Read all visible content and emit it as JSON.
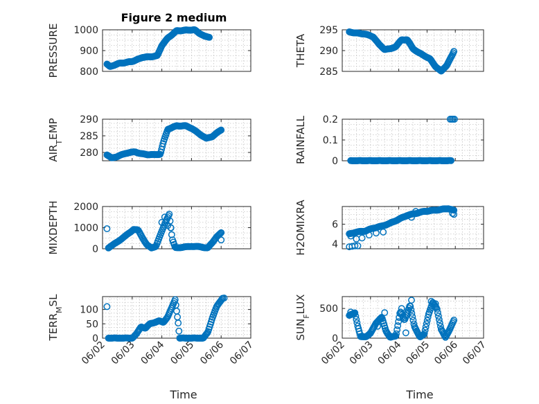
{
  "figure": {
    "title": "Figure 2 medium"
  },
  "colors": {
    "marker": "#0072BD",
    "axis": "#262626",
    "grid": "#c4c4c4"
  },
  "chart_data": [
    {
      "id": "pressure",
      "type": "scatter",
      "col": 0,
      "row": 0,
      "title": "Figure 2 medium",
      "ylabel": {
        "main": "PRESSURE",
        "sub": "",
        "rest": ""
      },
      "xlabel": "",
      "xlim": [
        0,
        5
      ],
      "ylim": [
        800,
        1000
      ],
      "yticks": [
        800,
        900,
        1000
      ],
      "yticklabels": [
        "800",
        "900",
        "1000"
      ],
      "xticks": [
        0,
        1,
        2,
        3,
        4,
        5
      ],
      "xticklabels": [],
      "grid": true,
      "minor_grid": true,
      "curve": [
        [
          0.15,
          835
        ],
        [
          0.25,
          822
        ],
        [
          0.35,
          828
        ],
        [
          0.55,
          838
        ],
        [
          0.8,
          843
        ],
        [
          1.0,
          848
        ],
        [
          1.2,
          858
        ],
        [
          1.35,
          868
        ],
        [
          1.6,
          870
        ],
        [
          1.85,
          875
        ],
        [
          2.0,
          925
        ],
        [
          2.2,
          960
        ],
        [
          2.5,
          995
        ],
        [
          2.8,
          998
        ],
        [
          3.1,
          1000
        ],
        [
          3.25,
          985
        ],
        [
          3.45,
          968
        ],
        [
          3.6,
          965
        ]
      ],
      "n": 160
    },
    {
      "id": "theta",
      "type": "scatter",
      "col": 1,
      "row": 0,
      "ylabel": {
        "main": "THETA",
        "sub": "",
        "rest": ""
      },
      "xlabel": "",
      "xlim": [
        0,
        5
      ],
      "ylim": [
        285,
        295
      ],
      "yticks": [
        285,
        290,
        295
      ],
      "yticklabels": [
        "285",
        "290",
        "295"
      ],
      "xticks": [
        0,
        1,
        2,
        3,
        4,
        5
      ],
      "xticklabels": [],
      "grid": true,
      "minor_grid": true,
      "curve": [
        [
          0.25,
          294.5
        ],
        [
          0.5,
          294.2
        ],
        [
          0.8,
          294.0
        ],
        [
          1.1,
          293.3
        ],
        [
          1.3,
          291.5
        ],
        [
          1.5,
          290.3
        ],
        [
          1.7,
          290.4
        ],
        [
          1.9,
          291.0
        ],
        [
          2.1,
          292.6
        ],
        [
          2.3,
          292.6
        ],
        [
          2.5,
          290.5
        ],
        [
          2.7,
          289.5
        ],
        [
          2.9,
          288.8
        ],
        [
          3.1,
          288.0
        ],
        [
          3.3,
          286.2
        ],
        [
          3.5,
          285.0
        ],
        [
          3.7,
          286.5
        ],
        [
          3.9,
          289.0
        ],
        [
          3.95,
          289.8
        ]
      ],
      "n": 150
    },
    {
      "id": "air_temp",
      "type": "scatter",
      "col": 0,
      "row": 1,
      "ylabel": {
        "main": "AIR",
        "sub": "T",
        "rest": "EMP"
      },
      "xlabel": "",
      "xlim": [
        0,
        5
      ],
      "ylim": [
        277.5,
        290
      ],
      "yticks": [
        280,
        285,
        290
      ],
      "yticklabels": [
        "280",
        "285",
        "290"
      ],
      "xticks": [
        0,
        1,
        2,
        3,
        4,
        5
      ],
      "xticklabels": [],
      "grid": true,
      "minor_grid": true,
      "curve": [
        [
          0.15,
          279.3
        ],
        [
          0.3,
          278.3
        ],
        [
          0.5,
          278.8
        ],
        [
          0.8,
          279.8
        ],
        [
          1.1,
          280.2
        ],
        [
          1.3,
          279.6
        ],
        [
          1.5,
          279.4
        ],
        [
          1.75,
          279.3
        ],
        [
          1.95,
          279.5
        ],
        [
          2.05,
          283.0
        ],
        [
          2.2,
          287.0
        ],
        [
          2.5,
          288.0
        ],
        [
          2.8,
          288.0
        ],
        [
          3.0,
          287.3
        ],
        [
          3.2,
          286.0
        ],
        [
          3.5,
          284.2
        ],
        [
          3.7,
          284.8
        ],
        [
          3.85,
          285.8
        ],
        [
          4.0,
          286.8
        ]
      ],
      "n": 160
    },
    {
      "id": "rainfall",
      "type": "scatter",
      "col": 1,
      "row": 1,
      "ylabel": {
        "main": "RAINFALL",
        "sub": "",
        "rest": ""
      },
      "xlabel": "",
      "xlim": [
        0,
        5
      ],
      "ylim": [
        0,
        0.2
      ],
      "yticks": [
        0,
        0.1,
        0.2
      ],
      "yticklabels": [
        "0",
        "0.1",
        "0.2"
      ],
      "xticks": [
        0,
        1,
        2,
        3,
        4,
        5
      ],
      "xticklabels": [],
      "grid": true,
      "minor_grid": true,
      "curve": [
        [
          0.3,
          0
        ],
        [
          3.85,
          0
        ]
      ],
      "n": 150,
      "extra": [
        [
          3.82,
          0.2
        ],
        [
          3.87,
          0.2
        ],
        [
          3.92,
          0.2
        ],
        [
          3.97,
          0.2
        ]
      ]
    },
    {
      "id": "mixdepth",
      "type": "scatter",
      "col": 0,
      "row": 2,
      "ylabel": {
        "main": "MIXDEPTH",
        "sub": "",
        "rest": ""
      },
      "xlabel": "",
      "xlim": [
        0,
        5
      ],
      "ylim": [
        0,
        2000
      ],
      "yticks": [
        0,
        1000,
        2000
      ],
      "yticklabels": [
        "0",
        "1000",
        "2000"
      ],
      "xticks": [
        0,
        1,
        2,
        3,
        4,
        5
      ],
      "xticklabels": [],
      "grid": true,
      "minor_grid": true,
      "curve": [
        [
          0.2,
          50
        ],
        [
          0.35,
          180
        ],
        [
          0.55,
          380
        ],
        [
          0.75,
          580
        ],
        [
          0.9,
          750
        ],
        [
          1.05,
          920
        ],
        [
          1.2,
          880
        ],
        [
          1.35,
          520
        ],
        [
          1.5,
          180
        ],
        [
          1.65,
          30
        ],
        [
          1.8,
          120
        ],
        [
          1.9,
          480
        ],
        [
          2.05,
          1000
        ],
        [
          2.15,
          1350
        ],
        [
          2.25,
          1650
        ],
        [
          2.35,
          450
        ],
        [
          2.45,
          50
        ],
        [
          2.7,
          70
        ],
        [
          3.0,
          120
        ],
        [
          3.3,
          90
        ],
        [
          3.55,
          40
        ],
        [
          3.7,
          280
        ],
        [
          3.85,
          580
        ],
        [
          4.0,
          750
        ]
      ],
      "n": 140,
      "extra": [
        [
          0.15,
          950
        ],
        [
          2.0,
          1250
        ],
        [
          2.1,
          1500
        ],
        [
          2.2,
          1100
        ],
        [
          2.3,
          1000
        ],
        [
          4.0,
          420
        ]
      ]
    },
    {
      "id": "h2omixra",
      "type": "scatter",
      "col": 1,
      "row": 2,
      "ylabel": {
        "main": "H2OMIXRA",
        "sub": "",
        "rest": ""
      },
      "xlabel": "",
      "xlim": [
        0,
        5
      ],
      "ylim": [
        3.5,
        7.8
      ],
      "yticks": [
        4,
        6
      ],
      "yticklabels": [
        "4",
        "6"
      ],
      "xticks": [
        0,
        1,
        2,
        3,
        4,
        5
      ],
      "xticklabels": [],
      "grid": true,
      "minor_grid": true,
      "curve": [
        [
          0.25,
          5.0
        ],
        [
          0.5,
          5.2
        ],
        [
          0.8,
          5.3
        ],
        [
          1.1,
          5.6
        ],
        [
          1.4,
          5.8
        ],
        [
          1.7,
          6.1
        ],
        [
          2.0,
          6.5
        ],
        [
          2.3,
          6.9
        ],
        [
          2.6,
          7.1
        ],
        [
          2.9,
          7.3
        ],
        [
          3.2,
          7.4
        ],
        [
          3.5,
          7.5
        ],
        [
          3.75,
          7.6
        ],
        [
          3.95,
          7.4
        ]
      ],
      "n": 150,
      "extra": [
        [
          0.25,
          3.7
        ],
        [
          0.35,
          3.75
        ],
        [
          0.45,
          3.8
        ],
        [
          0.55,
          3.8
        ],
        [
          0.3,
          4.8
        ],
        [
          0.5,
          4.5
        ],
        [
          0.7,
          4.6
        ],
        [
          0.95,
          4.9
        ],
        [
          1.2,
          5.1
        ],
        [
          1.45,
          5.2
        ],
        [
          3.95,
          7.0
        ],
        [
          3.9,
          7.1
        ],
        [
          2.6,
          7.3
        ],
        [
          2.45,
          6.7
        ]
      ]
    },
    {
      "id": "terr_msl",
      "type": "scatter",
      "col": 0,
      "row": 3,
      "ylabel": {
        "main": "TERR",
        "sub": "M",
        "rest": "SL"
      },
      "xlabel": "Time",
      "xlim": [
        0,
        5
      ],
      "ylim": [
        0,
        145
      ],
      "yticks": [
        0,
        50,
        100
      ],
      "yticklabels": [
        "0",
        "50",
        "100"
      ],
      "xticks": [
        0,
        1,
        2,
        3,
        4,
        5
      ],
      "xticklabels": [
        "06/02",
        "06/03",
        "06/04",
        "06/05",
        "06/06",
        "06/07"
      ],
      "grid": true,
      "minor_grid": true,
      "curve": [
        [
          0.2,
          0
        ],
        [
          0.8,
          0
        ],
        [
          1.0,
          0
        ],
        [
          1.15,
          15
        ],
        [
          1.3,
          40
        ],
        [
          1.45,
          35
        ],
        [
          1.6,
          50
        ],
        [
          1.75,
          55
        ],
        [
          1.9,
          60
        ],
        [
          2.05,
          55
        ],
        [
          2.2,
          75
        ],
        [
          2.35,
          110
        ],
        [
          2.45,
          135
        ],
        [
          2.55,
          55
        ],
        [
          2.6,
          0
        ],
        [
          3.2,
          0
        ],
        [
          3.4,
          0
        ],
        [
          3.55,
          20
        ],
        [
          3.7,
          70
        ],
        [
          3.85,
          110
        ],
        [
          4.05,
          140
        ]
      ],
      "n": 150,
      "extra": [
        [
          0.15,
          110
        ],
        [
          4.1,
          140
        ]
      ]
    },
    {
      "id": "sun_flux",
      "type": "scatter",
      "col": 1,
      "row": 3,
      "ylabel": {
        "main": "SUN",
        "sub": "F",
        "rest": "LUX"
      },
      "xlabel": "Time",
      "xlim": [
        0,
        5
      ],
      "ylim": [
        0,
        700
      ],
      "yticks": [
        0,
        500
      ],
      "yticklabels": [
        "0",
        "500"
      ],
      "xticks": [
        0,
        1,
        2,
        3,
        4,
        5
      ],
      "xticklabels": [
        "06/02",
        "06/03",
        "06/04",
        "06/05",
        "06/06",
        "06/07"
      ],
      "grid": true,
      "minor_grid": true,
      "curve": [
        [
          0.25,
          380
        ],
        [
          0.45,
          430
        ],
        [
          0.55,
          200
        ],
        [
          0.65,
          20
        ],
        [
          0.85,
          30
        ],
        [
          1.0,
          80
        ],
        [
          1.2,
          260
        ],
        [
          1.4,
          350
        ],
        [
          1.55,
          120
        ],
        [
          1.7,
          10
        ],
        [
          1.9,
          40
        ],
        [
          2.05,
          450
        ],
        [
          2.2,
          300
        ],
        [
          2.4,
          560
        ],
        [
          2.55,
          200
        ],
        [
          2.75,
          20
        ],
        [
          2.9,
          60
        ],
        [
          3.05,
          400
        ],
        [
          3.2,
          600
        ],
        [
          3.35,
          500
        ],
        [
          3.5,
          150
        ],
        [
          3.65,
          10
        ],
        [
          3.8,
          150
        ],
        [
          3.95,
          300
        ]
      ],
      "n": 150,
      "extra": [
        [
          0.3,
          440
        ],
        [
          1.5,
          430
        ],
        [
          2.1,
          500
        ],
        [
          2.45,
          640
        ],
        [
          3.15,
          620
        ],
        [
          3.3,
          580
        ],
        [
          2.25,
          90
        ],
        [
          1.25,
          200
        ]
      ]
    }
  ]
}
